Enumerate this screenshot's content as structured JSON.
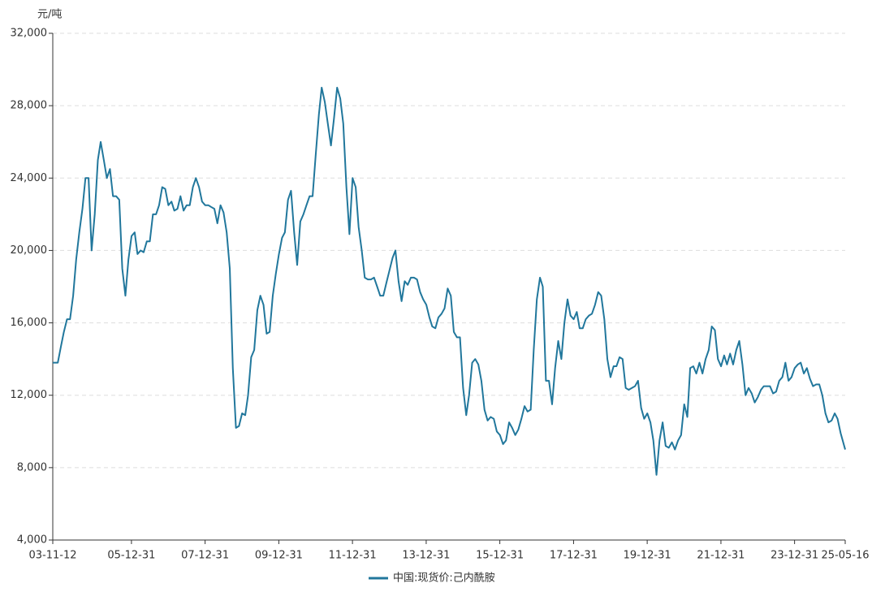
{
  "chart_data": {
    "type": "line",
    "y_label": "元/吨",
    "xlim": [
      "03-11-12",
      "25-05-16"
    ],
    "xticks": [
      "03-11-12",
      "05-12-31",
      "07-12-31",
      "09-12-31",
      "11-12-31",
      "13-12-31",
      "15-12-31",
      "17-12-31",
      "19-12-31",
      "21-12-31",
      "23-12-31",
      "25-05-16"
    ],
    "ylim": [
      4000,
      32000
    ],
    "yticks": [
      {
        "value": 4000,
        "label": "4,000"
      },
      {
        "value": 8000,
        "label": "8,000"
      },
      {
        "value": 12000,
        "label": "12,000"
      },
      {
        "value": 16000,
        "label": "16,000"
      },
      {
        "value": 20000,
        "label": "20,000"
      },
      {
        "value": 24000,
        "label": "24,000"
      },
      {
        "value": 28000,
        "label": "28,000"
      },
      {
        "value": 32000,
        "label": "32,000"
      }
    ],
    "grid": true,
    "legend": "bottom",
    "x": [
      "03-11-12",
      "03-12-01",
      "04-01-01",
      "04-02-01",
      "04-03-01",
      "04-04-01",
      "04-05-01",
      "04-06-01",
      "04-07-01",
      "04-08-01",
      "04-09-01",
      "04-10-01",
      "04-11-01",
      "04-12-01",
      "05-01-01",
      "05-02-01",
      "05-03-01",
      "05-04-01",
      "05-05-01",
      "05-06-01",
      "05-07-01",
      "05-08-01",
      "05-09-01",
      "05-10-01",
      "05-11-01",
      "05-12-01",
      "06-01-01",
      "06-02-01",
      "06-03-01",
      "06-04-01",
      "06-05-01",
      "06-06-01",
      "06-07-01",
      "06-08-01",
      "06-09-01",
      "06-10-01",
      "06-11-01",
      "06-12-01",
      "07-01-01",
      "07-02-01",
      "07-03-01",
      "07-04-01",
      "07-05-01",
      "07-06-01",
      "07-07-01",
      "07-08-01",
      "07-09-01",
      "07-10-01",
      "07-11-01",
      "07-12-01",
      "08-01-01",
      "08-02-01",
      "08-03-01",
      "08-04-01",
      "08-05-01",
      "08-06-01",
      "08-07-01",
      "08-08-01",
      "08-09-01",
      "08-10-01",
      "08-11-01",
      "08-12-01",
      "09-01-01",
      "09-02-01",
      "09-03-01",
      "09-04-01",
      "09-05-01",
      "09-06-01",
      "09-07-01",
      "09-08-01",
      "09-09-01",
      "09-10-01",
      "09-11-01",
      "09-12-01",
      "10-01-01",
      "10-02-01",
      "10-03-01",
      "10-04-01",
      "10-05-01",
      "10-06-01",
      "10-07-01",
      "10-08-01",
      "10-09-01",
      "10-10-01",
      "10-11-01",
      "10-12-01",
      "11-01-01",
      "11-02-01",
      "11-03-01",
      "11-04-01",
      "11-05-01",
      "11-06-01",
      "11-07-01",
      "11-08-01",
      "11-09-01",
      "11-10-01",
      "11-11-01",
      "11-12-01",
      "12-01-01",
      "12-02-01",
      "12-03-01",
      "12-04-01",
      "12-05-01",
      "12-06-01",
      "12-07-01",
      "12-08-01",
      "12-09-01",
      "12-10-01",
      "12-11-01",
      "12-12-01",
      "13-01-01",
      "13-02-01",
      "13-03-01",
      "13-04-01",
      "13-05-01",
      "13-06-01",
      "13-07-01",
      "13-08-01",
      "13-09-01",
      "13-10-01",
      "13-11-01",
      "13-12-01",
      "14-01-01",
      "14-02-01",
      "14-03-01",
      "14-04-01",
      "14-05-01",
      "14-06-01",
      "14-07-01",
      "14-08-01",
      "14-09-01",
      "14-10-01",
      "14-11-01",
      "14-12-01",
      "15-01-01",
      "15-02-01",
      "15-03-01",
      "15-04-01",
      "15-05-01",
      "15-06-01",
      "15-07-01",
      "15-08-01",
      "15-09-01",
      "15-10-01",
      "15-11-01",
      "15-12-01",
      "16-01-01",
      "16-02-01",
      "16-03-01",
      "16-04-01",
      "16-05-01",
      "16-06-01",
      "16-07-01",
      "16-08-01",
      "16-09-01",
      "16-10-01",
      "16-11-01",
      "16-12-01",
      "17-01-01",
      "17-02-01",
      "17-03-01",
      "17-04-01",
      "17-05-01",
      "17-06-01",
      "17-07-01",
      "17-08-01",
      "17-09-01",
      "17-10-01",
      "17-11-01",
      "17-12-01",
      "18-01-01",
      "18-02-01",
      "18-03-01",
      "18-04-01",
      "18-05-01",
      "18-06-01",
      "18-07-01",
      "18-08-01",
      "18-09-01",
      "18-10-01",
      "18-11-01",
      "18-12-01",
      "19-01-01",
      "19-02-01",
      "19-03-01",
      "19-04-01",
      "19-05-01",
      "19-06-01",
      "19-07-01",
      "19-08-01",
      "19-09-01",
      "19-10-01",
      "19-11-01",
      "19-12-01",
      "20-01-01",
      "20-02-01",
      "20-03-01",
      "20-04-01",
      "20-05-01",
      "20-06-01",
      "20-07-01",
      "20-08-01",
      "20-09-01",
      "20-10-01",
      "20-11-01",
      "20-12-01",
      "21-01-01",
      "21-02-01",
      "21-03-01",
      "21-04-01",
      "21-05-01",
      "21-06-01",
      "21-07-01",
      "21-08-01",
      "21-09-01",
      "21-10-01",
      "21-11-01",
      "21-12-01",
      "22-01-01",
      "22-02-01",
      "22-03-01",
      "22-04-01",
      "22-05-01",
      "22-06-01",
      "22-07-01",
      "22-08-01",
      "22-09-01",
      "22-10-01",
      "22-11-01",
      "22-12-01",
      "23-01-01",
      "23-02-01",
      "23-03-01",
      "23-04-01",
      "23-05-01",
      "23-06-01",
      "23-07-01",
      "23-08-01",
      "23-09-01",
      "23-10-01",
      "23-11-01",
      "23-12-01",
      "24-01-01",
      "24-02-01",
      "24-03-01",
      "24-04-01",
      "24-05-01",
      "24-06-01",
      "24-07-01",
      "24-08-01",
      "24-09-01",
      "24-10-01",
      "24-11-01",
      "24-12-01",
      "25-01-01",
      "25-02-01",
      "25-03-01",
      "25-04-01",
      "25-05-16"
    ],
    "series": [
      {
        "name": "中国:现货价:己内酰胺",
        "color": "#21779c",
        "values": [
          13800,
          13800,
          13800,
          14700,
          15500,
          16200,
          16200,
          17500,
          19500,
          21000,
          22300,
          24000,
          24000,
          20000,
          22000,
          25000,
          26000,
          25000,
          24000,
          24500,
          23000,
          23000,
          22800,
          19000,
          17500,
          19500,
          20800,
          21000,
          19800,
          20000,
          19900,
          20500,
          20500,
          22000,
          22000,
          22500,
          23500,
          23400,
          22500,
          22700,
          22200,
          22300,
          23000,
          22200,
          22500,
          22500,
          23500,
          24000,
          23500,
          22700,
          22500,
          22500,
          22400,
          22300,
          21500,
          22500,
          22100,
          21000,
          19000,
          13500,
          10200,
          10300,
          11000,
          10900,
          12000,
          14100,
          14500,
          16700,
          17500,
          17000,
          15400,
          15500,
          17500,
          18700,
          19800,
          20700,
          21000,
          22800,
          23300,
          21000,
          19200,
          21600,
          22000,
          22500,
          23000,
          23000,
          25300,
          27500,
          29000,
          28200,
          27000,
          25800,
          27300,
          29000,
          28400,
          27000,
          23500,
          20900,
          24000,
          23500,
          21300,
          20000,
          18500,
          18400,
          18400,
          18500,
          18000,
          17500,
          17500,
          18200,
          18900,
          19600,
          20000,
          18300,
          17200,
          18300,
          18100,
          18500,
          18500,
          18400,
          17700,
          17300,
          17000,
          16300,
          15800,
          15700,
          16300,
          16500,
          16800,
          17900,
          17500,
          15500,
          15200,
          15200,
          12400,
          10900,
          12000,
          13800,
          14000,
          13700,
          12800,
          11200,
          10600,
          10800,
          10700,
          10000,
          9800,
          9300,
          9500,
          10500,
          10200,
          9800,
          10100,
          10700,
          11400,
          11100,
          11200,
          14500,
          17300,
          18500,
          18000,
          12800,
          12800,
          11500,
          13500,
          15000,
          14000,
          16000,
          17300,
          16400,
          16200,
          16600,
          15700,
          15700,
          16200,
          16400,
          16500,
          17000,
          17700,
          17500,
          16200,
          14000,
          13000,
          13600,
          13600,
          14100,
          14000,
          12400,
          12300,
          12400,
          12500,
          12800,
          11300,
          10700,
          11000,
          10500,
          9500,
          7600,
          9500,
          10500,
          9200,
          9100,
          9400,
          9000,
          9500,
          9800,
          11500,
          10800,
          13500,
          13600,
          13200,
          13800,
          13200,
          14000,
          14500,
          15800,
          15600,
          14000,
          13600,
          14200,
          13700,
          14300,
          13700,
          14500,
          15000,
          13700,
          12000,
          12400,
          12100,
          11600,
          11900,
          12300,
          12500,
          12500,
          12500,
          12100,
          12200,
          12800,
          13000,
          13800,
          12800,
          13000,
          13500,
          13700,
          13800,
          13200,
          13500,
          12900,
          12500,
          12600,
          12600,
          12000,
          11000,
          10500,
          10600,
          11000,
          10700,
          9900,
          9000
        ]
      }
    ]
  }
}
